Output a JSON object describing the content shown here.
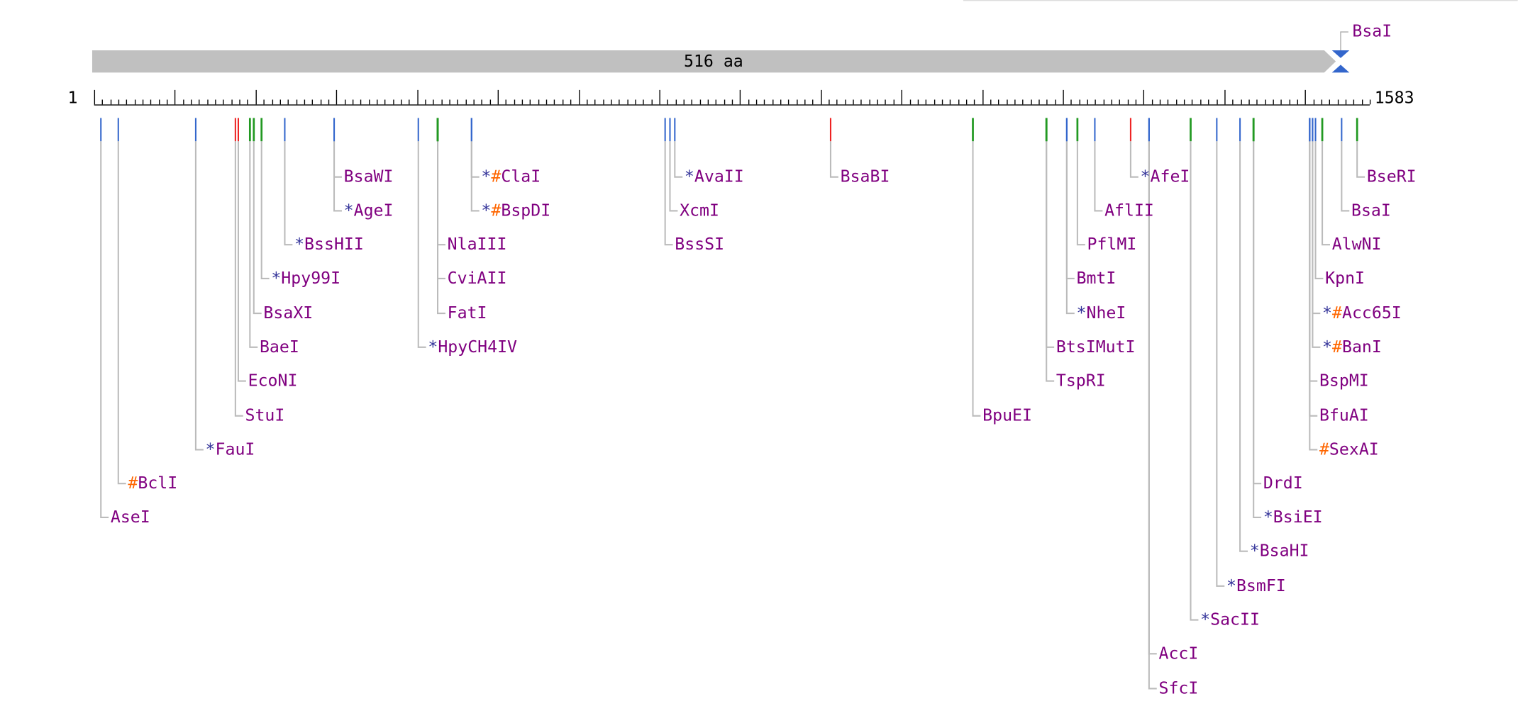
{
  "map": {
    "length_label": "516 aa",
    "start": "1",
    "end": "1583",
    "top_site": "BsaI"
  },
  "sites": [
    {
      "name": "AseI"
    },
    {
      "hash": "#",
      "name": "BclI"
    },
    {
      "star": "*",
      "name": "FauI"
    },
    {
      "name": "StuI"
    },
    {
      "name": "EcoNI"
    },
    {
      "name": "BaeI"
    },
    {
      "name": "BsaXI"
    },
    {
      "star": "*",
      "name": "Hpy99I"
    },
    {
      "star": "*",
      "name": "BssHII"
    },
    {
      "star": "*",
      "name": "AgeI"
    },
    {
      "name": "BsaWI"
    },
    {
      "star": "*",
      "name": "HpyCH4IV"
    },
    {
      "name": "FatI"
    },
    {
      "name": "CviAII"
    },
    {
      "name": "NlaIII"
    },
    {
      "star": "*",
      "hash": "#",
      "name": "ClaI"
    },
    {
      "star": "*",
      "hash": "#",
      "name": "BspDI"
    },
    {
      "name": "BssSI"
    },
    {
      "name": "XcmI"
    },
    {
      "star": "*",
      "name": "AvaII"
    },
    {
      "name": "BsaBI"
    },
    {
      "name": "BpuEI"
    },
    {
      "name": "TspRI"
    },
    {
      "name": "BtsIMutI"
    },
    {
      "star": "*",
      "name": "NheI"
    },
    {
      "name": "BmtI"
    },
    {
      "name": "PflMI"
    },
    {
      "name": "AflII"
    },
    {
      "star": "*",
      "name": "AfeI"
    },
    {
      "name": "SfcI"
    },
    {
      "name": "AccI"
    },
    {
      "star": "*",
      "name": "SacII"
    },
    {
      "star": "*",
      "name": "BsmFI"
    },
    {
      "star": "*",
      "name": "BsaHI"
    },
    {
      "star": "*",
      "name": "BsiEI"
    },
    {
      "name": "DrdI"
    },
    {
      "hash": "#",
      "name": "SexAI"
    },
    {
      "name": "BfuAI"
    },
    {
      "name": "BspMI"
    },
    {
      "star": "*",
      "hash": "#",
      "name": "BanI"
    },
    {
      "star": "*",
      "hash": "#",
      "name": "Acc65I"
    },
    {
      "name": "KpnI"
    },
    {
      "name": "AlwNI"
    },
    {
      "name": "BsaI"
    },
    {
      "name": "BseRI"
    }
  ]
}
